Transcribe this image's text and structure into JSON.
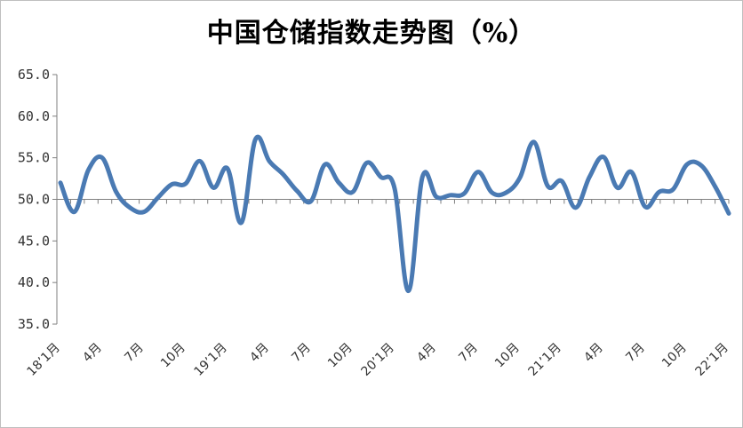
{
  "chart_data": {
    "type": "line",
    "title": "中国仓储指数走势图（%）",
    "xlabel": "",
    "ylabel": "",
    "ylim": [
      35,
      65
    ],
    "yticks": [
      "35.0",
      "40.0",
      "45.0",
      "50.0",
      "55.0",
      "60.0",
      "65.0"
    ],
    "reference_line": 50,
    "grid": false,
    "legend": "none",
    "line_color": "#4a7ab3",
    "x_tick_labels": [
      {
        "index": 0,
        "label": "18’1月"
      },
      {
        "index": 3,
        "label": "4月"
      },
      {
        "index": 6,
        "label": "7月"
      },
      {
        "index": 9,
        "label": "10月"
      },
      {
        "index": 12,
        "label": "19’1月"
      },
      {
        "index": 15,
        "label": "4月"
      },
      {
        "index": 18,
        "label": "7月"
      },
      {
        "index": 21,
        "label": "10月"
      },
      {
        "index": 24,
        "label": "20’1月"
      },
      {
        "index": 27,
        "label": "4月"
      },
      {
        "index": 30,
        "label": "7月"
      },
      {
        "index": 33,
        "label": "10月"
      },
      {
        "index": 36,
        "label": "21’1月"
      },
      {
        "index": 39,
        "label": "4月"
      },
      {
        "index": 42,
        "label": "7月"
      },
      {
        "index": 45,
        "label": "10月"
      },
      {
        "index": 48,
        "label": "22’1月"
      }
    ],
    "values": [
      52.0,
      48.5,
      53.5,
      55.0,
      50.9,
      49.0,
      48.5,
      50.2,
      51.8,
      51.9,
      54.6,
      51.4,
      53.7,
      47.2,
      57.2,
      54.6,
      53.0,
      51.0,
      49.8,
      54.2,
      52.0,
      50.9,
      54.4,
      52.7,
      51.3,
      39.0,
      52.7,
      50.3,
      50.5,
      50.7,
      53.3,
      50.8,
      50.8,
      52.6,
      56.9,
      51.6,
      52.2,
      49.0,
      52.7,
      55.1,
      51.4,
      53.3,
      49.1,
      50.9,
      51.2,
      54.2,
      54.1,
      51.6,
      48.3
    ]
  }
}
